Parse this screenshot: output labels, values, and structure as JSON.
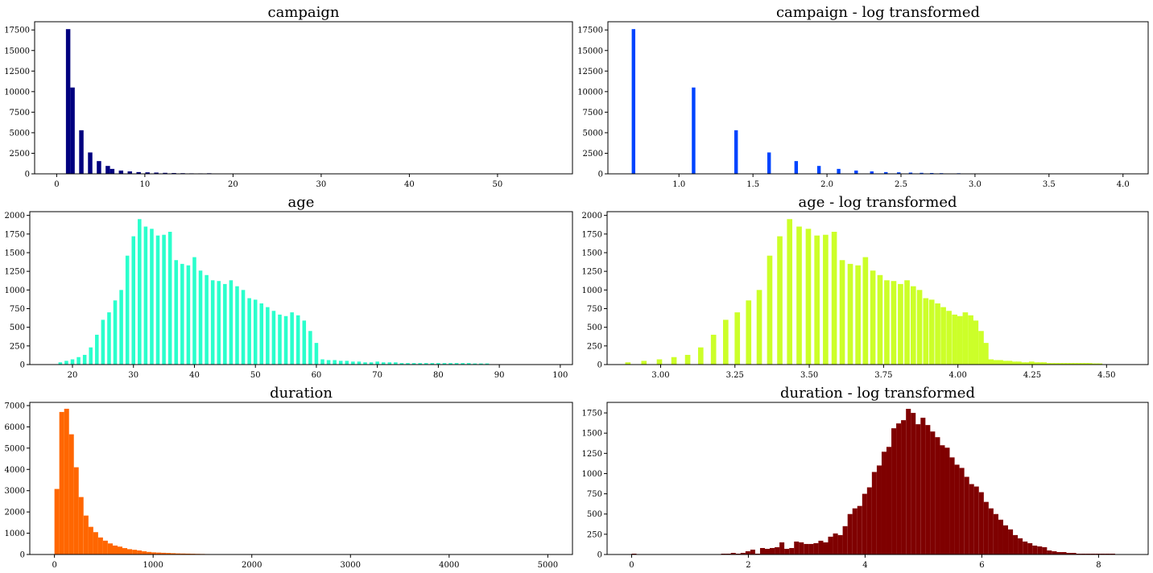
{
  "chart_data": [
    {
      "type": "bar",
      "title": "campaign",
      "color": "#00007f",
      "xlim": [
        -2.5,
        58.5
      ],
      "ylim": [
        0,
        18500
      ],
      "xticks": [
        0,
        10,
        20,
        30,
        40,
        50
      ],
      "yticks": [
        0,
        2500,
        5000,
        7500,
        10000,
        12500,
        15000,
        17500
      ],
      "bar_width": 0.5,
      "x": [
        1.3,
        1.8,
        2.8,
        3.8,
        4.8,
        5.8,
        6.3,
        7.3,
        8.3,
        9.3,
        10.3,
        11.3,
        12.3,
        13.3,
        14.3,
        15.3,
        16.3,
        17.3,
        18.3,
        19.3,
        20.3
      ],
      "values": [
        17600,
        10500,
        5300,
        2600,
        1550,
        960,
        600,
        400,
        300,
        210,
        180,
        150,
        120,
        100,
        80,
        60,
        55,
        70,
        30,
        25,
        20
      ]
    },
    {
      "type": "bar",
      "title": "campaign - log transformed",
      "color": "#0044ff",
      "xlim": [
        0.52,
        4.17
      ],
      "ylim": [
        0,
        18500
      ],
      "xticks": [
        1.0,
        1.5,
        2.0,
        2.5,
        3.0,
        3.5,
        4.0
      ],
      "xtick_labels": [
        "1.0",
        "1.5",
        "2.0",
        "2.5",
        "3.0",
        "3.5",
        "4.0"
      ],
      "yticks": [
        0,
        2500,
        5000,
        7500,
        10000,
        12500,
        15000,
        17500
      ],
      "bar_width": 0.024,
      "x": [
        0.693,
        1.099,
        1.386,
        1.609,
        1.792,
        1.946,
        2.079,
        2.197,
        2.303,
        2.398,
        2.485,
        2.565,
        2.639,
        2.708,
        2.773,
        2.89
      ],
      "values": [
        17600,
        10500,
        5300,
        2600,
        1550,
        960,
        600,
        400,
        300,
        210,
        180,
        150,
        120,
        100,
        80,
        70
      ]
    },
    {
      "type": "bar",
      "title": "age",
      "color": "#2affcc",
      "xlim": [
        13.0,
        102.0
      ],
      "ylim": [
        0,
        2050
      ],
      "xticks": [
        20,
        30,
        40,
        50,
        60,
        70,
        80,
        90,
        100
      ],
      "yticks": [
        0,
        250,
        500,
        750,
        1000,
        1250,
        1500,
        1750,
        2000
      ],
      "bar_width": 0.6,
      "x": [
        18,
        19,
        20,
        21,
        22,
        23,
        24,
        25,
        26,
        27,
        28,
        29,
        30,
        31,
        32,
        33,
        34,
        35,
        36,
        37,
        38,
        39,
        40,
        41,
        42,
        43,
        44,
        45,
        46,
        47,
        48,
        49,
        50,
        51,
        52,
        53,
        54,
        55,
        56,
        57,
        58,
        59,
        60,
        61,
        62,
        63,
        64,
        65,
        66,
        67,
        68,
        69,
        70,
        71,
        72,
        73,
        74,
        75,
        76,
        77,
        78,
        79,
        80,
        81,
        82,
        83,
        84,
        85,
        86,
        87,
        88
      ],
      "values": [
        30,
        50,
        70,
        100,
        130,
        230,
        400,
        600,
        700,
        860,
        1000,
        1460,
        1720,
        1950,
        1850,
        1820,
        1730,
        1740,
        1780,
        1400,
        1350,
        1330,
        1440,
        1260,
        1200,
        1130,
        1120,
        1080,
        1130,
        1050,
        1000,
        890,
        870,
        820,
        770,
        720,
        670,
        650,
        700,
        660,
        590,
        450,
        290,
        70,
        60,
        60,
        50,
        50,
        40,
        40,
        30,
        30,
        40,
        30,
        30,
        30,
        20,
        20,
        20,
        20,
        20,
        20,
        20,
        20,
        20,
        20,
        20,
        20,
        15,
        15,
        15
      ]
    },
    {
      "type": "bar",
      "title": "age - log transformed",
      "color": "#ccff29",
      "xlim": [
        2.82,
        4.64
      ],
      "ylim": [
        0,
        2050
      ],
      "xticks": [
        3.0,
        3.25,
        3.5,
        3.75,
        4.0,
        4.25,
        4.5
      ],
      "xtick_labels": [
        "3.00",
        "3.25",
        "3.50",
        "3.75",
        "4.00",
        "4.25",
        "4.50"
      ],
      "yticks": [
        0,
        250,
        500,
        750,
        1000,
        1250,
        1500,
        1750,
        2000
      ],
      "bar_width": 0.018,
      "x": [
        2.89,
        2.944,
        2.996,
        3.045,
        3.091,
        3.135,
        3.178,
        3.219,
        3.258,
        3.296,
        3.332,
        3.367,
        3.401,
        3.434,
        3.466,
        3.497,
        3.526,
        3.555,
        3.584,
        3.611,
        3.638,
        3.664,
        3.689,
        3.714,
        3.738,
        3.761,
        3.784,
        3.807,
        3.829,
        3.85,
        3.871,
        3.892,
        3.912,
        3.932,
        3.951,
        3.97,
        3.989,
        4.007,
        4.025,
        4.043,
        4.06,
        4.078,
        4.094,
        4.111,
        4.127,
        4.143,
        4.159,
        4.174,
        4.19,
        4.205,
        4.22,
        4.234,
        4.248,
        4.263,
        4.277,
        4.29,
        4.304,
        4.317,
        4.331,
        4.344,
        4.357,
        4.369,
        4.382,
        4.394,
        4.407,
        4.419,
        4.431,
        4.443,
        4.454,
        4.466,
        4.477
      ],
      "values": [
        30,
        50,
        70,
        100,
        130,
        230,
        400,
        600,
        700,
        860,
        1000,
        1460,
        1720,
        1950,
        1850,
        1820,
        1730,
        1740,
        1780,
        1400,
        1350,
        1330,
        1440,
        1260,
        1200,
        1130,
        1120,
        1080,
        1130,
        1050,
        1000,
        890,
        870,
        820,
        770,
        720,
        670,
        650,
        700,
        660,
        590,
        450,
        290,
        70,
        60,
        60,
        50,
        50,
        40,
        40,
        30,
        30,
        40,
        30,
        30,
        30,
        20,
        20,
        20,
        20,
        20,
        20,
        20,
        20,
        20,
        20,
        20,
        20,
        15,
        15,
        15
      ]
    },
    {
      "type": "bar",
      "title": "duration",
      "color": "#ff6600",
      "xlim": [
        -250,
        5250
      ],
      "ylim": [
        0,
        7150
      ],
      "xticks": [
        0,
        1000,
        2000,
        3000,
        4000,
        5000
      ],
      "yticks": [
        0,
        1000,
        2000,
        3000,
        4000,
        5000,
        6000,
        7000
      ],
      "bar_width": 49.18,
      "x": [
        24.6,
        73.8,
        123,
        172,
        221,
        270,
        320,
        369,
        418,
        467,
        516,
        566,
        615,
        664,
        713,
        762,
        812,
        861,
        910,
        959,
        1008,
        1058,
        1107,
        1156,
        1205,
        1254,
        1304,
        1353,
        1402,
        1451,
        1500,
        1550,
        1599
      ],
      "values": [
        3080,
        6700,
        6850,
        5650,
        4100,
        2700,
        1830,
        1300,
        1050,
        800,
        650,
        520,
        420,
        370,
        300,
        250,
        220,
        190,
        150,
        120,
        100,
        90,
        80,
        70,
        60,
        50,
        45,
        40,
        35,
        30,
        25,
        20,
        15
      ]
    },
    {
      "type": "bar",
      "title": "duration - log transformed",
      "color": "#7f0000",
      "xlim": [
        -0.42,
        8.85
      ],
      "ylim": [
        0,
        1880
      ],
      "xticks": [
        0,
        2,
        4,
        6,
        8
      ],
      "yticks": [
        0,
        250,
        500,
        750,
        1000,
        1250,
        1500,
        1750
      ],
      "bar_width": 0.0833,
      "x": [
        0.042,
        1.575,
        1.658,
        1.742,
        1.825,
        1.908,
        1.992,
        2.075,
        2.158,
        2.242,
        2.325,
        2.408,
        2.492,
        2.575,
        2.658,
        2.742,
        2.825,
        2.908,
        2.992,
        3.075,
        3.158,
        3.242,
        3.325,
        3.408,
        3.492,
        3.575,
        3.658,
        3.742,
        3.825,
        3.908,
        3.992,
        4.075,
        4.158,
        4.242,
        4.325,
        4.408,
        4.492,
        4.575,
        4.658,
        4.742,
        4.825,
        4.908,
        4.992,
        5.075,
        5.158,
        5.242,
        5.325,
        5.408,
        5.492,
        5.575,
        5.658,
        5.742,
        5.825,
        5.908,
        5.992,
        6.075,
        6.158,
        6.242,
        6.325,
        6.408,
        6.492,
        6.575,
        6.658,
        6.742,
        6.825,
        6.908,
        6.992,
        7.075,
        7.158,
        7.242,
        7.325,
        7.408,
        7.492,
        7.575,
        7.658,
        7.742,
        7.825,
        7.908,
        7.992,
        8.075,
        8.158,
        8.242
      ],
      "values": [
        10,
        10,
        10,
        20,
        10,
        20,
        40,
        60,
        10,
        80,
        70,
        80,
        90,
        150,
        70,
        80,
        160,
        150,
        130,
        130,
        140,
        170,
        150,
        220,
        260,
        240,
        350,
        500,
        570,
        600,
        750,
        830,
        1020,
        1100,
        1270,
        1330,
        1560,
        1620,
        1660,
        1800,
        1750,
        1610,
        1690,
        1600,
        1520,
        1450,
        1350,
        1320,
        1200,
        1110,
        1070,
        960,
        870,
        840,
        770,
        650,
        570,
        500,
        430,
        360,
        310,
        240,
        200,
        160,
        140,
        110,
        100,
        90,
        50,
        40,
        30,
        30,
        20,
        20,
        10,
        10,
        10,
        10,
        10,
        10,
        10,
        10
      ]
    }
  ]
}
